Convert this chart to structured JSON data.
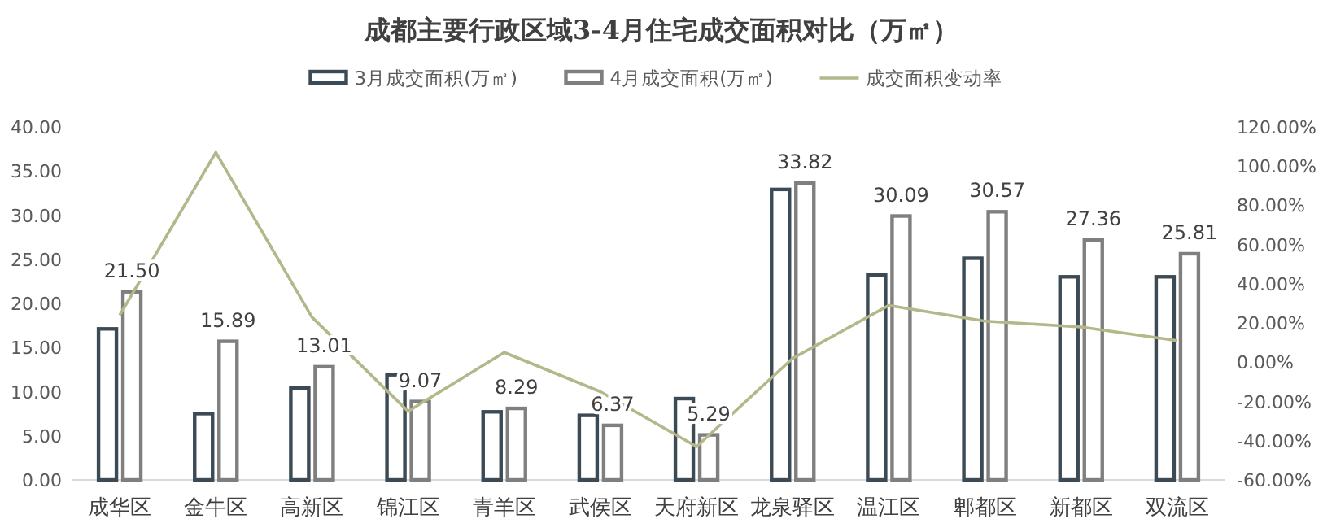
{
  "chart_data": {
    "type": "bar",
    "title": "成都主要行政区域3-4月住宅成交面积对比（万㎡）",
    "categories": [
      "成华区",
      "金牛区",
      "高新区",
      "锦江区",
      "青羊区",
      "武侯区",
      "天府新区",
      "龙泉驿区",
      "温江区",
      "郫都区",
      "新都区",
      "双流区"
    ],
    "series": [
      {
        "name": "3月成交面积(万㎡)",
        "color": "#3b4a55",
        "values": [
          17.3,
          7.7,
          10.6,
          12.1,
          7.9,
          7.5,
          9.4,
          33.1,
          23.4,
          25.3,
          23.2,
          23.2
        ]
      },
      {
        "name": "4月成交面积(万㎡)",
        "color": "#7f7f7f",
        "values": [
          21.5,
          15.89,
          13.01,
          9.07,
          8.29,
          6.37,
          5.29,
          33.82,
          30.09,
          30.57,
          27.36,
          25.81
        ],
        "value_labels": [
          "21.50",
          "15.89",
          "13.01",
          "9.07",
          "8.29",
          "6.37",
          "5.29",
          "33.82",
          "30.09",
          "30.57",
          "27.36",
          "25.81"
        ]
      },
      {
        "name": "成交面积变动率",
        "color": "#b3b78a",
        "type": "line",
        "axis": "y2",
        "values": [
          24,
          107,
          23,
          -25,
          5,
          -15,
          -43,
          2,
          29,
          21,
          18,
          11
        ]
      }
    ],
    "ylim": [
      0,
      40
    ],
    "yticks": [
      {
        "value": 0,
        "label": "0.00"
      },
      {
        "value": 5,
        "label": "5.00"
      },
      {
        "value": 10,
        "label": "10.00"
      },
      {
        "value": 15,
        "label": "15.00"
      },
      {
        "value": 20,
        "label": "20.00"
      },
      {
        "value": 25,
        "label": "25.00"
      },
      {
        "value": 30,
        "label": "30.00"
      },
      {
        "value": 35,
        "label": "35.00"
      },
      {
        "value": 40,
        "label": "40.00"
      }
    ],
    "y2lim": [
      -60,
      120
    ],
    "y2ticks": [
      {
        "value": -60,
        "label": "-60.00%"
      },
      {
        "value": -40,
        "label": "-40.00%"
      },
      {
        "value": -20,
        "label": "-20.00%"
      },
      {
        "value": 0,
        "label": "0.00%"
      },
      {
        "value": 20,
        "label": "20.00%"
      },
      {
        "value": 40,
        "label": "40.00%"
      },
      {
        "value": 60,
        "label": "60.00%"
      },
      {
        "value": 80,
        "label": "80.00%"
      },
      {
        "value": 100,
        "label": "100.00%"
      },
      {
        "value": 120,
        "label": "120.00%"
      }
    ],
    "legend": "top"
  }
}
